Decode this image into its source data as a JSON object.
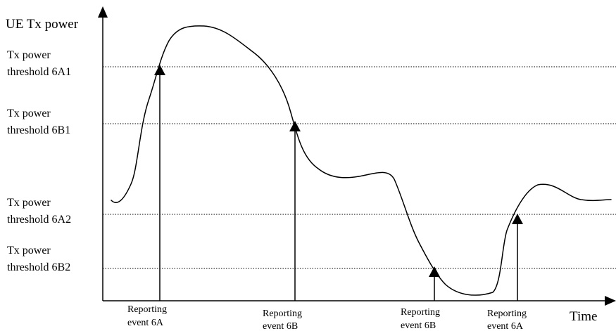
{
  "axes": {
    "y_label": "UE Tx power",
    "x_label": "Time"
  },
  "thresholds": [
    {
      "id": "6A1",
      "line1": "Tx power",
      "line2": "threshold 6A1"
    },
    {
      "id": "6B1",
      "line1": "Tx power",
      "line2": "threshold 6B1"
    },
    {
      "id": "6A2",
      "line1": "Tx power",
      "line2": "threshold 6A2"
    },
    {
      "id": "6B2",
      "line1": "Tx power",
      "line2": "threshold 6B2"
    }
  ],
  "events": [
    {
      "line1": "Reporting",
      "line2": "event 6A"
    },
    {
      "line1": "Reporting",
      "line2": "event 6B"
    },
    {
      "line1": "Reporting",
      "line2": "event 6B"
    },
    {
      "line1": "Reporting",
      "line2": "event 6A"
    }
  ],
  "colors": {
    "line": "#000000",
    "background": "#ffffff"
  }
}
